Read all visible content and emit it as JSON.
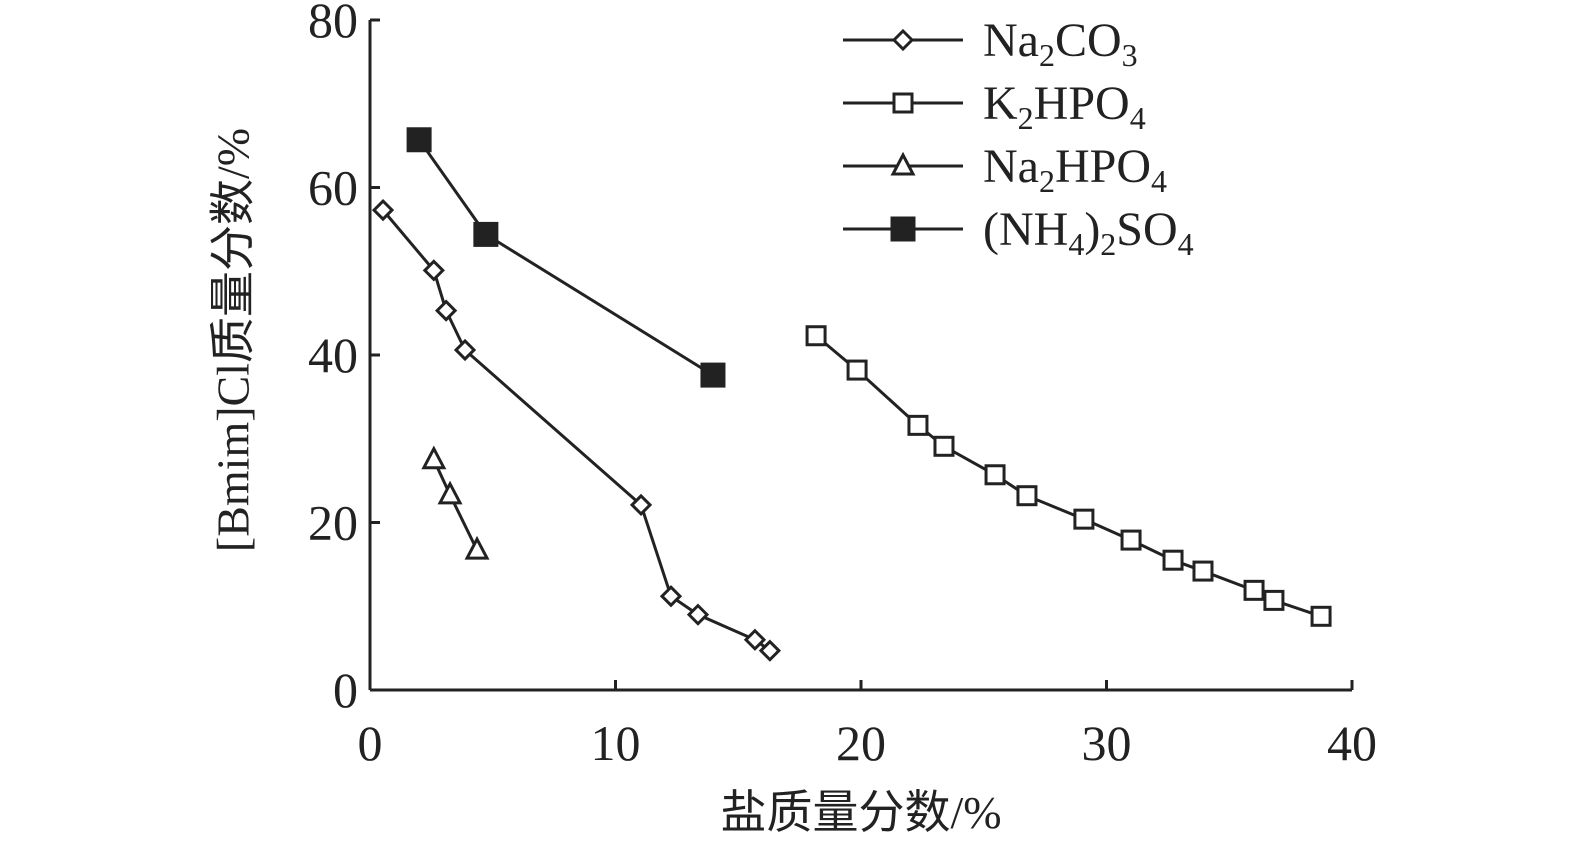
{
  "chart_data": {
    "type": "line",
    "x_label": "盐质量分数/%",
    "y_label": "[Bmim]Cl质量分数/%",
    "xlim": [
      0,
      40
    ],
    "xticks": [
      0,
      10,
      20,
      30,
      40
    ],
    "ylim": [
      0,
      80
    ],
    "yticks": [
      0,
      20,
      40,
      60,
      80
    ],
    "grid": false,
    "legend": "upper right",
    "series": [
      {
        "name": "Na2CO3",
        "color": "#222222",
        "marker": "diamond",
        "x": [
          0.53,
          2.6,
          3.1,
          3.87,
          11.04,
          12.26,
          13.36,
          15.68,
          16.29
        ],
        "values": [
          57.3,
          50.1,
          45.3,
          40.6,
          22.1,
          11.2,
          9.0,
          6.0,
          4.7
        ]
      },
      {
        "name": "K2HPO4",
        "color": "#222222",
        "marker": "square-open",
        "x": [
          18.17,
          19.84,
          22.32,
          23.38,
          25.46,
          26.76,
          29.08,
          31.0,
          32.71,
          33.93,
          36.01,
          36.82,
          38.74
        ],
        "values": [
          42.3,
          38.2,
          31.6,
          29.1,
          25.7,
          23.2,
          20.4,
          17.9,
          15.5,
          14.2,
          11.9,
          10.7,
          8.8
        ]
      },
      {
        "name": "Na2HPO4",
        "color": "#222222",
        "marker": "triangle",
        "x": [
          2.6,
          3.26,
          4.36
        ],
        "values": [
          27.5,
          23.3,
          16.7
        ]
      },
      {
        "name": "(NH4)2SO4",
        "color": "#222222",
        "marker": "square-filled",
        "x": [
          2.0,
          4.72,
          13.97
        ],
        "values": [
          65.7,
          54.4,
          37.6
        ]
      }
    ]
  }
}
